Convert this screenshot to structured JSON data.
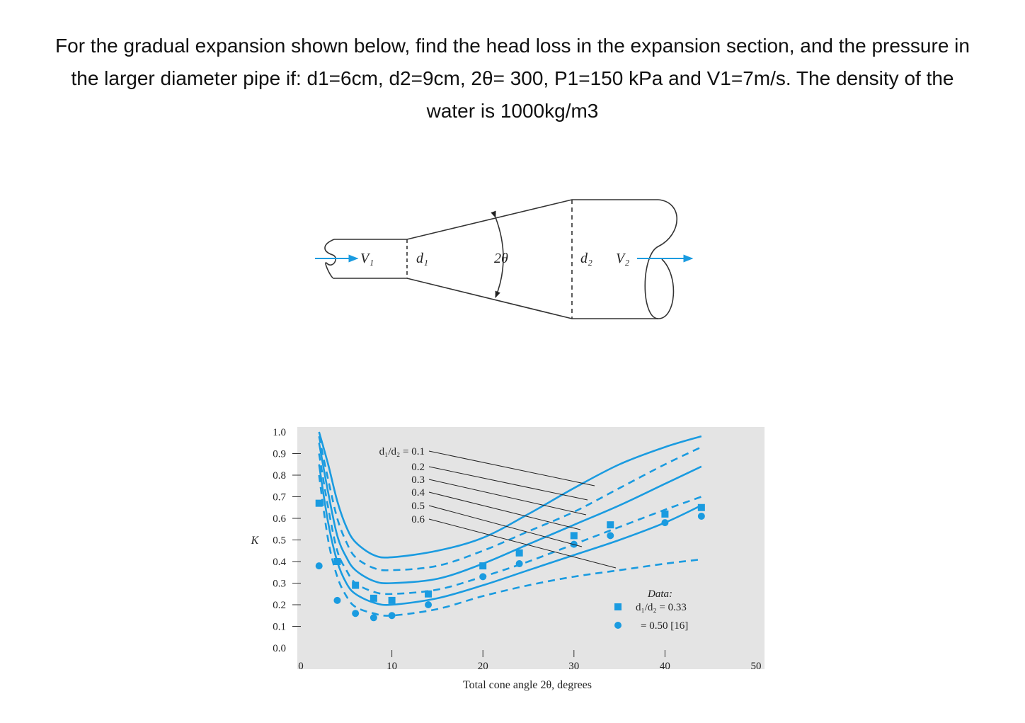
{
  "problem": {
    "lines": [
      "For the gradual expansion shown below, find the head loss in the expansion section, and the pressure in",
      "the larger diameter pipe if: d1=6cm, d2=9cm, 2θ= 300, P1=150 kPa and V1=7m/s. The density of the",
      "water is 1000kg/m3"
    ]
  },
  "diagram": {
    "labels": [
      "V₁",
      "d₁",
      "2θ",
      "d₂",
      "V₂"
    ]
  },
  "chart_data": {
    "type": "line",
    "ylabel": "K",
    "xlabel": "Total cone angle 2θ, degrees",
    "xlim": [
      0,
      50
    ],
    "xticks": [
      0,
      10,
      20,
      30,
      40,
      50
    ],
    "ylim": [
      0,
      1
    ],
    "yticks": [
      {
        "value": 0,
        "label": "0.0"
      },
      0.1,
      0.2,
      0.3,
      0.4,
      0.5,
      0.6,
      0.7,
      0.8,
      0.9,
      {
        "value": 1,
        "label": "1.0"
      }
    ],
    "x": [
      2,
      3,
      4,
      5,
      6,
      8,
      10,
      15,
      20,
      25,
      30,
      35,
      40,
      44
    ],
    "series": [
      {
        "name": "d₁/d₂ = 0.1",
        "color": "#1a9be0",
        "line_style": "solid",
        "values": [
          1.0,
          0.85,
          0.68,
          0.56,
          0.49,
          0.43,
          0.42,
          0.45,
          0.51,
          0.62,
          0.74,
          0.85,
          0.93,
          0.98
        ]
      },
      {
        "name": "0.2",
        "color": "#1a9be0",
        "line_style": "dashed",
        "values": [
          0.98,
          0.78,
          0.6,
          0.49,
          0.42,
          0.37,
          0.36,
          0.38,
          0.45,
          0.54,
          0.63,
          0.74,
          0.85,
          0.93
        ]
      },
      {
        "name": "0.3",
        "color": "#1a9be0",
        "line_style": "solid",
        "values": [
          0.95,
          0.72,
          0.52,
          0.42,
          0.36,
          0.31,
          0.3,
          0.32,
          0.39,
          0.48,
          0.57,
          0.66,
          0.76,
          0.84
        ]
      },
      {
        "name": "0.4",
        "color": "#1a9be0",
        "line_style": "dashed",
        "values": [
          0.9,
          0.65,
          0.45,
          0.36,
          0.3,
          0.26,
          0.25,
          0.27,
          0.33,
          0.4,
          0.48,
          0.56,
          0.64,
          0.7
        ]
      },
      {
        "name": "0.5",
        "color": "#1a9be0",
        "line_style": "solid",
        "values": [
          0.85,
          0.58,
          0.4,
          0.3,
          0.25,
          0.21,
          0.2,
          0.23,
          0.29,
          0.36,
          0.43,
          0.5,
          0.58,
          0.66
        ]
      },
      {
        "name": "0.6",
        "color": "#1a9be0",
        "line_style": "dashed",
        "values": [
          0.8,
          0.5,
          0.33,
          0.24,
          0.19,
          0.16,
          0.15,
          0.18,
          0.24,
          0.29,
          0.33,
          0.36,
          0.39,
          0.41
        ]
      }
    ],
    "data_points": {
      "title": "Data:",
      "series": [
        {
          "name": "d₁/d₂ = 0.33",
          "marker": "square",
          "color": "#1a9be0",
          "x": [
            2,
            4,
            6,
            8,
            10,
            14,
            20,
            24,
            30,
            34,
            40,
            44
          ],
          "values": [
            0.67,
            0.4,
            0.29,
            0.23,
            0.22,
            0.25,
            0.38,
            0.44,
            0.52,
            0.57,
            0.62,
            0.65
          ]
        },
        {
          "name": "= 0.50 [16]",
          "marker": "circle",
          "color": "#1a9be0",
          "x": [
            2,
            4,
            6,
            8,
            10,
            14,
            20,
            24,
            30,
            34,
            40,
            44
          ],
          "values": [
            0.38,
            0.22,
            0.16,
            0.14,
            0.15,
            0.2,
            0.33,
            0.39,
            0.48,
            0.52,
            0.58,
            0.61
          ]
        }
      ]
    }
  }
}
